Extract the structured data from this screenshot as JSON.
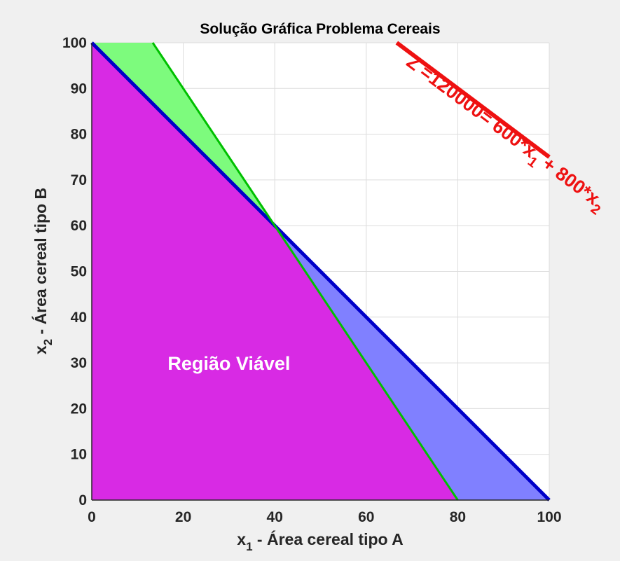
{
  "chart_data": {
    "type": "area",
    "title": "Solução Gráfica Problema Cereais",
    "xlabel": {
      "var": "x",
      "sub": "1",
      "text": " - Área cereal tipo A"
    },
    "ylabel": {
      "var": "x",
      "sub": "2",
      "text": " - Área cereal tipo B"
    },
    "xlim": [
      0,
      100
    ],
    "ylim": [
      0,
      100
    ],
    "xticks": [
      0,
      20,
      40,
      60,
      80,
      100
    ],
    "yticks": [
      0,
      10,
      20,
      30,
      40,
      50,
      60,
      70,
      80,
      90,
      100
    ],
    "grid": true,
    "constraints": [
      {
        "id": "green",
        "color": "#00c000",
        "fill": "#7dfb7d",
        "points": [
          [
            13.33,
            100
          ],
          [
            40,
            60
          ],
          [
            80,
            0
          ]
        ]
      },
      {
        "id": "blue",
        "color": "#0000c8",
        "fill": "#8080ff",
        "points": [
          [
            0,
            100
          ],
          [
            40,
            60
          ],
          [
            100,
            0
          ]
        ]
      }
    ],
    "feasible_region": {
      "color": "#d82ae4",
      "points": [
        [
          0,
          0
        ],
        [
          0,
          100
        ],
        [
          40,
          60
        ],
        [
          80,
          0
        ]
      ],
      "label": "Região Viável",
      "label_at": [
        30,
        30
      ]
    },
    "objective_line": {
      "color": "#ee1111",
      "points": [
        [
          66.67,
          100
        ],
        [
          100,
          75
        ]
      ],
      "label_parts": [
        "Z =120000= 600*x",
        "1",
        "  + 800*x",
        "2"
      ]
    }
  }
}
